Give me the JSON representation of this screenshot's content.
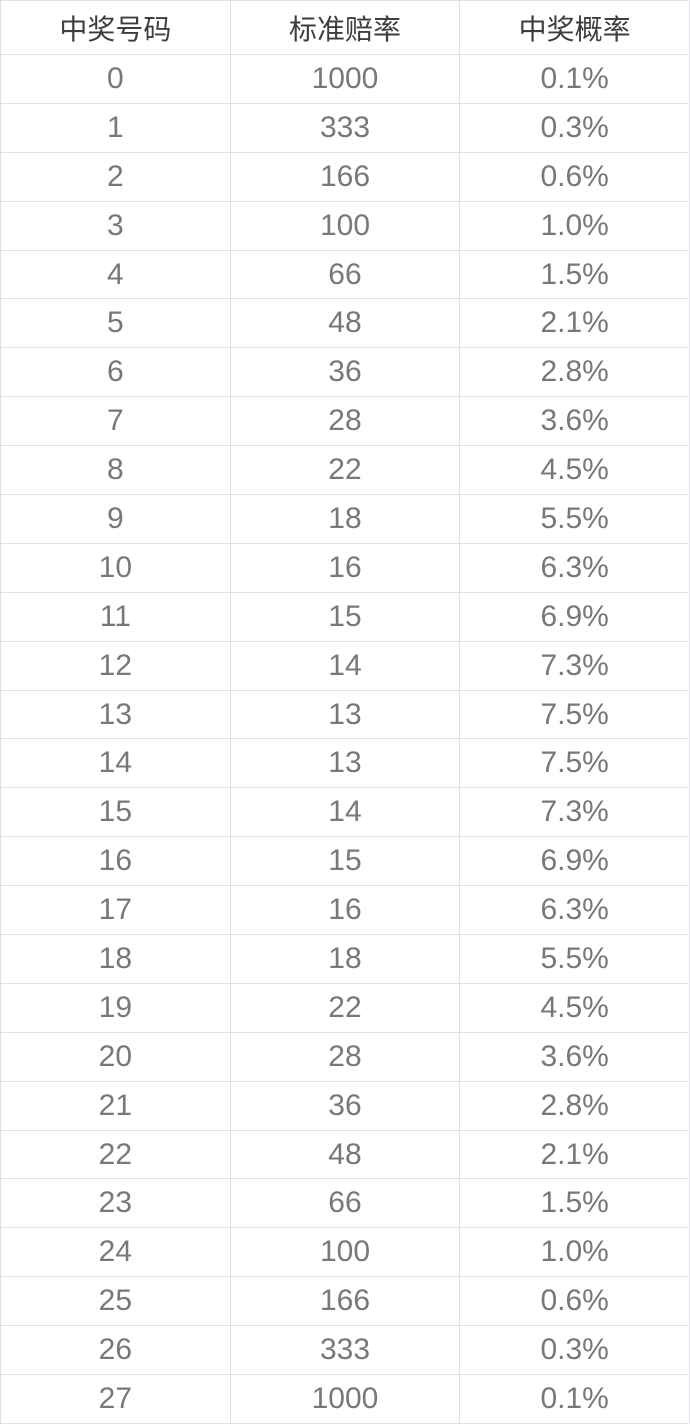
{
  "chart_data": {
    "type": "table",
    "title": "",
    "columns": [
      "中奖号码",
      "标准赔率",
      "中奖概率"
    ],
    "column_keys": [
      "winning_number",
      "standard_odds",
      "winning_probability"
    ],
    "rows": [
      [
        "0",
        "1000",
        "0.1%"
      ],
      [
        "1",
        "333",
        "0.3%"
      ],
      [
        "2",
        "166",
        "0.6%"
      ],
      [
        "3",
        "100",
        "1.0%"
      ],
      [
        "4",
        "66",
        "1.5%"
      ],
      [
        "5",
        "48",
        "2.1%"
      ],
      [
        "6",
        "36",
        "2.8%"
      ],
      [
        "7",
        "28",
        "3.6%"
      ],
      [
        "8",
        "22",
        "4.5%"
      ],
      [
        "9",
        "18",
        "5.5%"
      ],
      [
        "10",
        "16",
        "6.3%"
      ],
      [
        "11",
        "15",
        "6.9%"
      ],
      [
        "12",
        "14",
        "7.3%"
      ],
      [
        "13",
        "13",
        "7.5%"
      ],
      [
        "14",
        "13",
        "7.5%"
      ],
      [
        "15",
        "14",
        "7.3%"
      ],
      [
        "16",
        "15",
        "6.9%"
      ],
      [
        "17",
        "16",
        "6.3%"
      ],
      [
        "18",
        "18",
        "5.5%"
      ],
      [
        "19",
        "22",
        "4.5%"
      ],
      [
        "20",
        "28",
        "3.6%"
      ],
      [
        "21",
        "36",
        "2.8%"
      ],
      [
        "22",
        "48",
        "2.1%"
      ],
      [
        "23",
        "66",
        "1.5%"
      ],
      [
        "24",
        "100",
        "1.0%"
      ],
      [
        "25",
        "166",
        "0.6%"
      ],
      [
        "26",
        "333",
        "0.3%"
      ],
      [
        "27",
        "1000",
        "0.1%"
      ]
    ],
    "layout": {
      "grid": "full",
      "header_row": true,
      "alignment": "center"
    }
  },
  "colors": {
    "background": "#ffffff",
    "border": "#e0e1e5",
    "header_text": "#3d3e40",
    "body_text": "#77787a"
  }
}
